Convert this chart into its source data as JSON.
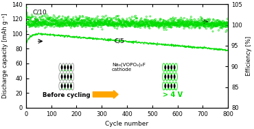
{
  "xlabel": "Cycle number",
  "ylabel_left": "Discharge capacity [mAh g⁻¹]",
  "ylabel_right": "Efficiency [%]",
  "xlim": [
    0,
    800
  ],
  "ylim_left": [
    0,
    140
  ],
  "ylim_right": [
    80,
    105
  ],
  "yticks_left": [
    0,
    20,
    40,
    60,
    80,
    100,
    120,
    140
  ],
  "yticks_right": [
    80,
    85,
    90,
    95,
    100,
    105
  ],
  "xticks": [
    0,
    100,
    200,
    300,
    400,
    500,
    600,
    700,
    800
  ],
  "c10_label": "C/10",
  "c5_label": "C/5",
  "line_color": "#00dd00",
  "background_color": "#ffffff",
  "annotation_text1": "Na₃(VOPO₄)₂F\ncathode",
  "annotation_before": "Before cycling",
  "annotation_after": "> 4 V",
  "arrow_color": "#FFA500",
  "figsize": [
    3.7,
    1.89
  ],
  "dpi": 100
}
